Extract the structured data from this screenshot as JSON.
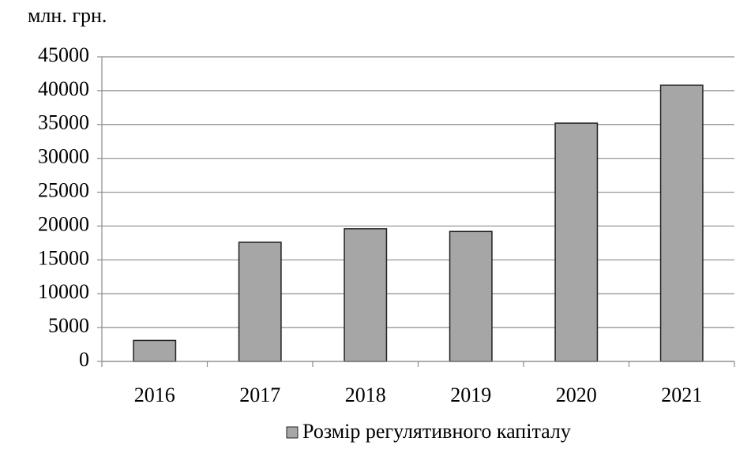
{
  "chart_data": {
    "type": "bar",
    "y_unit_label": "млн. грн.",
    "categories": [
      "2016",
      "2017",
      "2018",
      "2019",
      "2020",
      "2021"
    ],
    "series": [
      {
        "name": "Розмір регулятивного капіталу",
        "color": "#a6a6a6",
        "values": [
          3100,
          17600,
          19600,
          19200,
          35200,
          40800
        ]
      }
    ],
    "ylim": [
      0,
      45000
    ],
    "yticks": [
      0,
      5000,
      10000,
      15000,
      20000,
      25000,
      30000,
      35000,
      40000,
      45000
    ],
    "grid": true,
    "legend": "bottom"
  }
}
